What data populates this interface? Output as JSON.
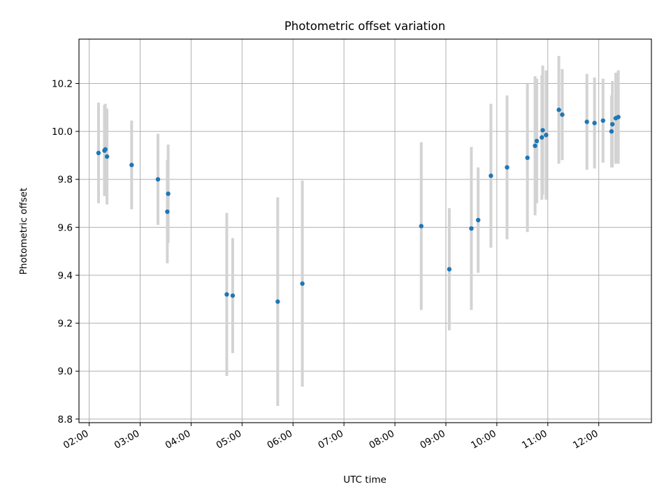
{
  "chart_data": {
    "type": "scatter",
    "title": "Photometric offset variation",
    "xlabel": "UTC time",
    "ylabel": "Photometric offset",
    "x_ticks": [
      "02:00",
      "03:00",
      "04:00",
      "05:00",
      "06:00",
      "07:00",
      "08:00",
      "09:00",
      "10:00",
      "11:00",
      "12:00"
    ],
    "y_ticks": [
      "8.8",
      "9.0",
      "9.2",
      "9.4",
      "9.6",
      "9.8",
      "10.0",
      "10.2"
    ],
    "xlim": [
      "01:48",
      "13:02"
    ],
    "ylim": [
      8.785,
      10.385
    ],
    "grid": true,
    "error_bars": true,
    "colors": {
      "point": "#1f77b4",
      "error_bar": "#d3d3d3",
      "grid": "#b0b0b0"
    },
    "points": [
      {
        "x": "02:11",
        "y": 9.91,
        "yerr": 0.21
      },
      {
        "x": "02:18",
        "y": 9.92,
        "yerr": 0.19
      },
      {
        "x": "02:19",
        "y": 9.925,
        "yerr": 0.19
      },
      {
        "x": "02:21",
        "y": 9.895,
        "yerr": 0.2
      },
      {
        "x": "02:50",
        "y": 9.86,
        "yerr": 0.185
      },
      {
        "x": "03:21",
        "y": 9.8,
        "yerr": 0.19
      },
      {
        "x": "03:32",
        "y": 9.665,
        "yerr": 0.215
      },
      {
        "x": "03:33",
        "y": 9.74,
        "yerr": 0.205
      },
      {
        "x": "04:42",
        "y": 9.32,
        "yerr": 0.34
      },
      {
        "x": "04:49",
        "y": 9.315,
        "yerr": 0.24
      },
      {
        "x": "05:42",
        "y": 9.29,
        "yerr": 0.435
      },
      {
        "x": "06:11",
        "y": 9.365,
        "yerr": 0.43
      },
      {
        "x": "08:31",
        "y": 9.605,
        "yerr": 0.35
      },
      {
        "x": "09:04",
        "y": 9.425,
        "yerr": 0.255
      },
      {
        "x": "09:30",
        "y": 9.595,
        "yerr": 0.34
      },
      {
        "x": "09:38",
        "y": 9.63,
        "yerr": 0.22
      },
      {
        "x": "09:53",
        "y": 9.815,
        "yerr": 0.3
      },
      {
        "x": "10:12",
        "y": 9.85,
        "yerr": 0.3
      },
      {
        "x": "10:36",
        "y": 9.89,
        "yerr": 0.31
      },
      {
        "x": "10:45",
        "y": 9.94,
        "yerr": 0.29
      },
      {
        "x": "10:47",
        "y": 9.96,
        "yerr": 0.26
      },
      {
        "x": "10:53",
        "y": 9.975,
        "yerr": 0.26
      },
      {
        "x": "10:54",
        "y": 10.005,
        "yerr": 0.27
      },
      {
        "x": "10:58",
        "y": 9.985,
        "yerr": 0.27
      },
      {
        "x": "11:13",
        "y": 10.09,
        "yerr": 0.225
      },
      {
        "x": "11:17",
        "y": 10.07,
        "yerr": 0.19
      },
      {
        "x": "11:46",
        "y": 10.04,
        "yerr": 0.2
      },
      {
        "x": "11:55",
        "y": 10.035,
        "yerr": 0.19
      },
      {
        "x": "12:05",
        "y": 10.045,
        "yerr": 0.175
      },
      {
        "x": "12:15",
        "y": 10.0,
        "yerr": 0.15
      },
      {
        "x": "12:16",
        "y": 10.03,
        "yerr": 0.18
      },
      {
        "x": "12:20",
        "y": 10.055,
        "yerr": 0.19
      },
      {
        "x": "12:23",
        "y": 10.06,
        "yerr": 0.195
      }
    ]
  }
}
